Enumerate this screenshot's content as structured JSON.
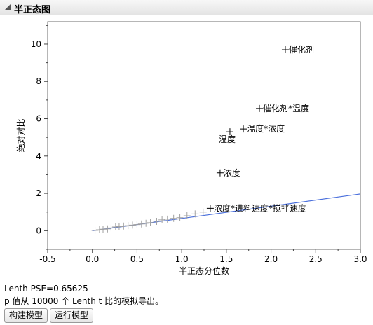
{
  "panel": {
    "title": "半正态图"
  },
  "chart_data": {
    "type": "scatter",
    "title": "",
    "xlabel": "半正态分位数",
    "ylabel": "绝对对比",
    "xlim": [
      -0.5,
      3.0
    ],
    "ylim": [
      -1.0,
      11.2
    ],
    "xticks": [
      "-0.5",
      "0.0",
      "0.5",
      "1.0",
      "1.5",
      "2.0",
      "2.5",
      "3.0"
    ],
    "yticks": [
      "0",
      "2",
      "4",
      "6",
      "8",
      "10"
    ],
    "grid": false,
    "legend": "none",
    "reference_line": {
      "x": [
        0.0,
        3.0
      ],
      "y": [
        0.0,
        1.97
      ],
      "color": "#4a6fdc"
    },
    "labeled_points": [
      {
        "x": 2.16,
        "y": 9.7,
        "label": "催化剂"
      },
      {
        "x": 1.87,
        "y": 6.55,
        "label": "催化剂*温度"
      },
      {
        "x": 1.69,
        "y": 5.45,
        "label": "温度*浓度"
      },
      {
        "x": 1.54,
        "y": 5.3,
        "label": "温度"
      },
      {
        "x": 1.43,
        "y": 3.1,
        "label": "浓度"
      },
      {
        "x": 1.32,
        "y": 1.2,
        "label": "浓度*进料速度*搅拌速度"
      }
    ],
    "unlabeled_points": [
      {
        "x": 0.03,
        "y": 0.02
      },
      {
        "x": 0.08,
        "y": 0.05
      },
      {
        "x": 0.12,
        "y": 0.08
      },
      {
        "x": 0.17,
        "y": 0.1
      },
      {
        "x": 0.21,
        "y": 0.15
      },
      {
        "x": 0.26,
        "y": 0.2
      },
      {
        "x": 0.3,
        "y": 0.22
      },
      {
        "x": 0.35,
        "y": 0.25
      },
      {
        "x": 0.4,
        "y": 0.27
      },
      {
        "x": 0.45,
        "y": 0.3
      },
      {
        "x": 0.5,
        "y": 0.33
      },
      {
        "x": 0.55,
        "y": 0.36
      },
      {
        "x": 0.6,
        "y": 0.4
      },
      {
        "x": 0.65,
        "y": 0.43
      },
      {
        "x": 0.72,
        "y": 0.5
      },
      {
        "x": 0.78,
        "y": 0.58
      },
      {
        "x": 0.84,
        "y": 0.62
      },
      {
        "x": 0.91,
        "y": 0.66
      },
      {
        "x": 0.98,
        "y": 0.7
      },
      {
        "x": 1.06,
        "y": 0.8
      },
      {
        "x": 1.15,
        "y": 0.9
      },
      {
        "x": 1.24,
        "y": 1.0
      }
    ],
    "colors": {
      "labeled_marker": "#000000",
      "unlabeled_marker": "#a0a0a0",
      "reference_line": "#4a6fdc"
    }
  },
  "info": {
    "lenth_pse": "Lenth PSE=0.65625",
    "pvalue_note": "p 值从 10000 个 Lenth t 比的模拟导出。"
  },
  "buttons": {
    "build_model": "构建模型",
    "run_model": "运行模型"
  }
}
